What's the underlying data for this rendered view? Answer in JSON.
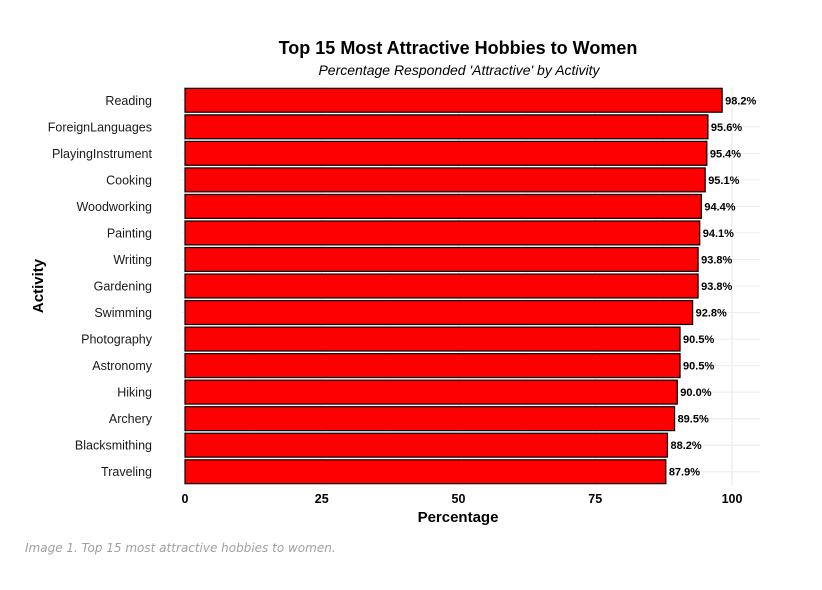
{
  "chart_data": {
    "type": "bar",
    "orientation": "horizontal",
    "title": "Top 15 Most Attractive Hobbies to Women",
    "subtitle": "Percentage Responded 'Attractive' by Activity",
    "xlabel": "Percentage",
    "ylabel": "Activity",
    "xlim": [
      0,
      100
    ],
    "x_ticks": [
      0,
      25,
      50,
      75,
      100
    ],
    "grid": true,
    "bar_color": "#ff0000",
    "bar_outline_color": "#000000",
    "categories": [
      "Reading",
      "ForeignLanguages",
      "PlayingInstrument",
      "Cooking",
      "Woodworking",
      "Painting",
      "Writing",
      "Gardening",
      "Swimming",
      "Photography",
      "Astronomy",
      "Hiking",
      "Archery",
      "Blacksmithing",
      "Traveling"
    ],
    "values": [
      98.2,
      95.6,
      95.4,
      95.1,
      94.4,
      94.1,
      93.8,
      93.8,
      92.8,
      90.5,
      90.5,
      90.0,
      89.5,
      88.2,
      87.9
    ],
    "data_labels": [
      "98.2%",
      "95.6%",
      "95.4%",
      "95.1%",
      "94.4%",
      "94.1%",
      "93.8%",
      "93.8%",
      "92.8%",
      "90.5%",
      "90.5%",
      "90.0%",
      "89.5%",
      "88.2%",
      "87.9%"
    ]
  },
  "caption": "Image 1. Top 15 most attractive hobbies to women."
}
